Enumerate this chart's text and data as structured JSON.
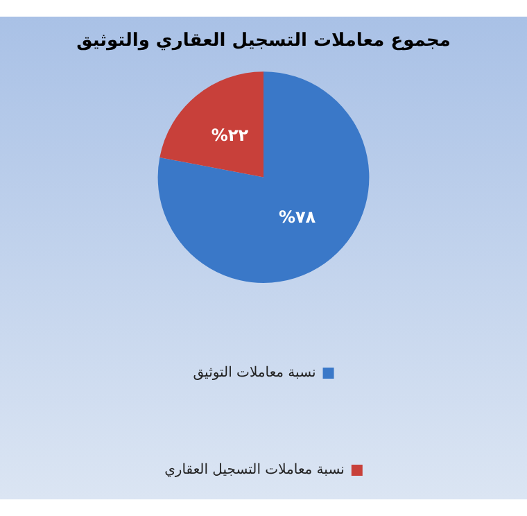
{
  "chart_data": {
    "type": "pie",
    "title": "مجموع معاملات التسجيل العقاري والتوثيق",
    "categories": [
      "نسبة معاملات التوثيق",
      "نسبة معاملات التسجيل العقاري"
    ],
    "values": [
      78,
      22
    ],
    "colors": [
      "#3a78c8",
      "#c8403a"
    ],
    "value_labels": [
      "%٧٨",
      "%٢٢"
    ],
    "legend": "bottom"
  }
}
